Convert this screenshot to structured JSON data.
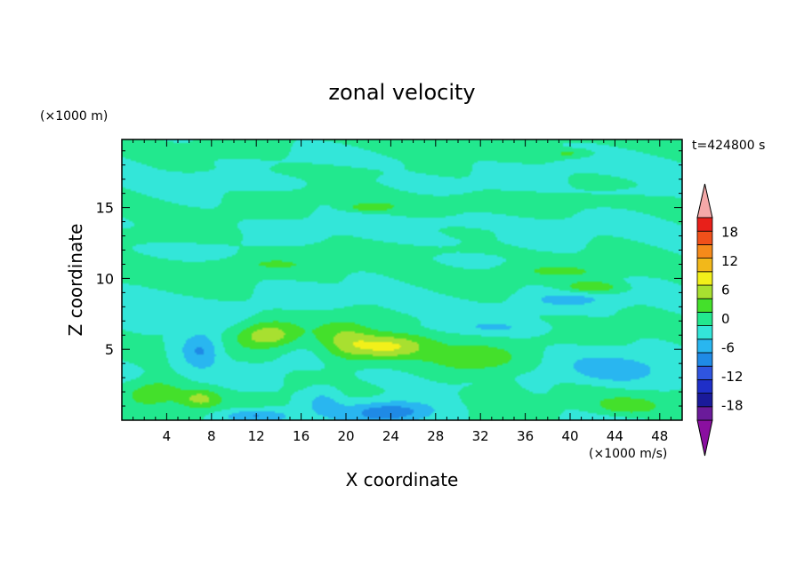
{
  "chart_data": {
    "type": "heatmap",
    "title": "zonal velocity",
    "xlabel": "X coordinate",
    "ylabel": "Z coordinate",
    "x_units": "(×1000 m/s)",
    "y_units": "(×1000 m)",
    "time_label": "t=424800 s",
    "xlim": [
      0,
      50
    ],
    "ylim": [
      0,
      19.8
    ],
    "x_ticks": [
      4,
      8,
      12,
      16,
      20,
      24,
      28,
      32,
      36,
      40,
      44,
      48
    ],
    "y_ticks": [
      5,
      10,
      15
    ],
    "colorbar": {
      "ticks": [
        18,
        12,
        6,
        0,
        -6,
        -12,
        -18
      ],
      "levels": [
        -21,
        -18,
        -15,
        -12,
        -9,
        -6,
        -3,
        0,
        3,
        6,
        9,
        12,
        15,
        18,
        21
      ],
      "colors": [
        "#6a1b9a",
        "#1a1a9a",
        "#1f2fc8",
        "#2f55e0",
        "#1f8ae6",
        "#29b6f0",
        "#33e6d9",
        "#22e88e",
        "#44e02b",
        "#a8e030",
        "#f2f01a",
        "#f2b81a",
        "#f58a1a",
        "#f0501a",
        "#e8201a"
      ],
      "under_color": "#8a0fa0",
      "over_color": "#f4a8a8"
    },
    "field": [
      {
        "x": 3,
        "z": 13,
        "sx": 6,
        "sz": 0.6,
        "v": 2.5
      },
      {
        "x": 18,
        "z": 17.5,
        "sx": 8,
        "sz": 0.5,
        "v": 2.2
      },
      {
        "x": 35,
        "z": 15.5,
        "sx": 10,
        "sz": 0.5,
        "v": 2.0
      },
      {
        "x": 25,
        "z": 12,
        "sx": 10,
        "sz": 0.5,
        "v": 2.0
      },
      {
        "x": 40,
        "z": 10.5,
        "sx": 6,
        "sz": 0.5,
        "v": 2.5
      },
      {
        "x": 42,
        "z": 9.4,
        "sx": 2.5,
        "sz": 0.4,
        "v": 6
      },
      {
        "x": 22,
        "z": 15,
        "sx": 2,
        "sz": 0.3,
        "v": 5
      },
      {
        "x": 40,
        "z": 18.8,
        "sx": 2,
        "sz": 0.3,
        "v": 4
      },
      {
        "x": 12,
        "z": 11,
        "sx": 6,
        "sz": 0.5,
        "v": 2.2
      },
      {
        "x": 13,
        "z": 6,
        "sx": 2.5,
        "sz": 0.9,
        "v": 8
      },
      {
        "x": 24,
        "z": 5.2,
        "sx": 3.5,
        "sz": 0.9,
        "v": 9
      },
      {
        "x": 20,
        "z": 5.5,
        "sx": 2.5,
        "sz": 1.6,
        "v": 5.5
      },
      {
        "x": 31,
        "z": 4.2,
        "sx": 4,
        "sz": 1.0,
        "v": 5
      },
      {
        "x": 3,
        "z": 2,
        "sx": 2.5,
        "sz": 0.9,
        "v": 6
      },
      {
        "x": 7,
        "z": 1.5,
        "sx": 1.8,
        "sz": 0.7,
        "v": 7
      },
      {
        "x": 45,
        "z": 1,
        "sx": 3,
        "sz": 0.6,
        "v": 5
      },
      {
        "x": 7,
        "z": 5,
        "sx": 1.8,
        "sz": 1.3,
        "v": -7
      },
      {
        "x": 24,
        "z": 0.6,
        "sx": 4,
        "sz": 0.8,
        "v": -9
      },
      {
        "x": 12,
        "z": 0.3,
        "sx": 3,
        "sz": 0.5,
        "v": -7
      },
      {
        "x": 44,
        "z": 3.5,
        "sx": 4,
        "sz": 1.0,
        "v": -5
      },
      {
        "x": 18,
        "z": 1.5,
        "sx": 1.8,
        "sz": 1.0,
        "v": -4
      },
      {
        "x": 3,
        "z": 7.5,
        "sx": 3,
        "sz": 0.6,
        "v": -2.5
      },
      {
        "x": 40,
        "z": 8.5,
        "sx": 4,
        "sz": 0.5,
        "v": -3
      },
      {
        "x": 33,
        "z": 6.5,
        "sx": 6,
        "sz": 0.5,
        "v": -2.5
      },
      {
        "x": 10,
        "z": 17,
        "sx": 6,
        "sz": 0.5,
        "v": -2
      },
      {
        "x": 30,
        "z": 14,
        "sx": 8,
        "sz": 0.5,
        "v": -2
      },
      {
        "x": 45,
        "z": 16,
        "sx": 5,
        "sz": 0.5,
        "v": -2
      },
      {
        "x": 34,
        "z": 2,
        "sx": 2,
        "sz": 1.2,
        "v": 2.5
      }
    ]
  }
}
